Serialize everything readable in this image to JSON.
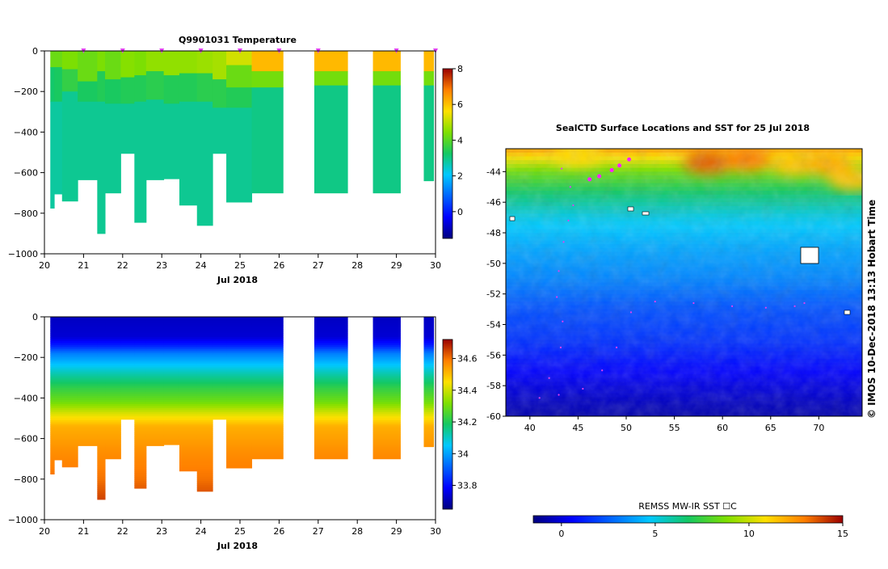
{
  "chart_data": [
    {
      "type": "heatmap",
      "title": "Q9901031  Temperature",
      "xlabel": "Jul 2018",
      "ylabel": "",
      "xlim": [
        20,
        30
      ],
      "ylim": [
        -1000,
        0
      ],
      "x_ticks": [
        "20",
        "21",
        "22",
        "23",
        "24",
        "25",
        "26",
        "27",
        "28",
        "29",
        "30"
      ],
      "y_ticks": [
        "0",
        "−200",
        "−400",
        "−600",
        "−800",
        "−1000"
      ],
      "colorbar": {
        "min": -1.5,
        "max": 8,
        "ticks": [
          "8",
          "6",
          "4",
          "2",
          "0"
        ],
        "tick_values": [
          8,
          6,
          4,
          2,
          0
        ]
      },
      "profile_markers_x": [
        21.0,
        22.0,
        23.0,
        24.0,
        25.0,
        26.0,
        27.0,
        29.0,
        30.0
      ],
      "profiles": [
        {
          "x0": 20.15,
          "x1": 20.25,
          "depth": 775,
          "bands": [
            [
              0,
              0,
              6.0
            ],
            [
              0,
              80,
              4.2
            ],
            [
              80,
              250,
              3.2
            ],
            [
              250,
              775,
              2.8
            ]
          ]
        },
        {
          "x0": 20.25,
          "x1": 20.45,
          "depth": 705,
          "bands": [
            [
              0,
              80,
              4.2
            ],
            [
              80,
              250,
              3.3
            ],
            [
              250,
              705,
              2.8
            ]
          ]
        },
        {
          "x0": 20.45,
          "x1": 20.85,
          "depth": 740,
          "bands": [
            [
              0,
              90,
              4.4
            ],
            [
              90,
              200,
              3.6
            ],
            [
              200,
              740,
              2.9
            ]
          ]
        },
        {
          "x0": 20.85,
          "x1": 21.35,
          "depth": 635,
          "bands": [
            [
              0,
              150,
              4.2
            ],
            [
              150,
              250,
              3.3
            ],
            [
              250,
              635,
              2.9
            ]
          ]
        },
        {
          "x0": 21.35,
          "x1": 21.55,
          "depth": 900,
          "bands": [
            [
              0,
              100,
              4.4
            ],
            [
              100,
              250,
              3.4
            ],
            [
              250,
              900,
              2.9
            ]
          ]
        },
        {
          "x0": 21.55,
          "x1": 21.95,
          "depth": 700,
          "bands": [
            [
              0,
              140,
              4.2
            ],
            [
              140,
              260,
              3.3
            ],
            [
              260,
              700,
              2.9
            ]
          ]
        },
        {
          "x0": 21.95,
          "x1": 22.3,
          "depth": 505,
          "bands": [
            [
              0,
              130,
              4.5
            ],
            [
              130,
              260,
              3.4
            ],
            [
              260,
              505,
              2.9
            ]
          ]
        },
        {
          "x0": 22.3,
          "x1": 22.6,
          "depth": 845,
          "bands": [
            [
              0,
              120,
              4.4
            ],
            [
              120,
              250,
              3.4
            ],
            [
              250,
              845,
              2.9
            ]
          ]
        },
        {
          "x0": 22.6,
          "x1": 23.05,
          "depth": 635,
          "bands": [
            [
              0,
              100,
              4.6
            ],
            [
              100,
              240,
              3.5
            ],
            [
              240,
              635,
              2.9
            ]
          ]
        },
        {
          "x0": 23.05,
          "x1": 23.45,
          "depth": 630,
          "bands": [
            [
              0,
              120,
              4.6
            ],
            [
              120,
              260,
              3.4
            ],
            [
              260,
              630,
              2.9
            ]
          ]
        },
        {
          "x0": 23.45,
          "x1": 23.9,
          "depth": 760,
          "bands": [
            [
              0,
              110,
              4.6
            ],
            [
              110,
              250,
              3.4
            ],
            [
              250,
              760,
              2.9
            ]
          ]
        },
        {
          "x0": 23.9,
          "x1": 24.3,
          "depth": 860,
          "bands": [
            [
              0,
              110,
              4.7
            ],
            [
              110,
              250,
              3.5
            ],
            [
              250,
              860,
              2.9
            ]
          ]
        },
        {
          "x0": 24.3,
          "x1": 24.65,
          "depth": 505,
          "bands": [
            [
              0,
              140,
              4.8
            ],
            [
              140,
              280,
              3.5
            ],
            [
              280,
              505,
              2.9
            ]
          ]
        },
        {
          "x0": 24.65,
          "x1": 25.3,
          "depth": 745,
          "bands": [
            [
              0,
              70,
              5.2
            ],
            [
              70,
              180,
              4.2
            ],
            [
              180,
              280,
              3.4
            ],
            [
              280,
              745,
              2.9
            ]
          ]
        },
        {
          "x0": 25.3,
          "x1": 26.1,
          "depth": 700,
          "bands": [
            [
              0,
              100,
              6.1
            ],
            [
              100,
              180,
              4.3
            ],
            [
              180,
              700,
              3.0
            ]
          ]
        },
        {
          "x0": 26.9,
          "x1": 27.75,
          "depth": 700,
          "bands": [
            [
              0,
              100,
              6.1
            ],
            [
              100,
              170,
              4.3
            ],
            [
              170,
              700,
              3.0
            ]
          ]
        },
        {
          "x0": 28.4,
          "x1": 29.1,
          "depth": 700,
          "bands": [
            [
              0,
              100,
              6.1
            ],
            [
              100,
              170,
              4.3
            ],
            [
              170,
              700,
              3.0
            ]
          ]
        },
        {
          "x0": 29.7,
          "x1": 29.95,
          "depth": 640,
          "bands": [
            [
              0,
              100,
              6.1
            ],
            [
              100,
              170,
              4.3
            ],
            [
              170,
              640,
              3.0
            ]
          ]
        }
      ]
    },
    {
      "type": "heatmap",
      "title": "",
      "xlabel": "Jul 2018",
      "ylabel": "",
      "xlim": [
        20,
        30
      ],
      "ylim": [
        -1000,
        0
      ],
      "x_ticks": [
        "20",
        "21",
        "22",
        "23",
        "24",
        "25",
        "26",
        "27",
        "28",
        "29",
        "30"
      ],
      "y_ticks": [
        "0",
        "−200",
        "−400",
        "−600",
        "−800",
        "−1000"
      ],
      "colorbar": {
        "min": 33.65,
        "max": 34.72,
        "ticks": [
          "34.6",
          "34.4",
          "34.2",
          "34",
          "33.8"
        ],
        "tick_values": [
          34.6,
          34.4,
          34.2,
          34.0,
          33.8
        ]
      },
      "profile_depths": [
        {
          "x0": 20.15,
          "x1": 20.25,
          "depth": 775
        },
        {
          "x0": 20.25,
          "x1": 20.45,
          "depth": 705
        },
        {
          "x0": 20.45,
          "x1": 20.85,
          "depth": 740
        },
        {
          "x0": 20.85,
          "x1": 21.35,
          "depth": 635
        },
        {
          "x0": 21.35,
          "x1": 21.55,
          "depth": 900
        },
        {
          "x0": 21.55,
          "x1": 21.95,
          "depth": 700
        },
        {
          "x0": 21.95,
          "x1": 22.3,
          "depth": 505
        },
        {
          "x0": 22.3,
          "x1": 22.6,
          "depth": 845
        },
        {
          "x0": 22.6,
          "x1": 23.05,
          "depth": 635
        },
        {
          "x0": 23.05,
          "x1": 23.45,
          "depth": 630
        },
        {
          "x0": 23.45,
          "x1": 23.9,
          "depth": 760
        },
        {
          "x0": 23.9,
          "x1": 24.3,
          "depth": 860
        },
        {
          "x0": 24.3,
          "x1": 24.65,
          "depth": 505
        },
        {
          "x0": 24.65,
          "x1": 25.3,
          "depth": 745
        },
        {
          "x0": 25.3,
          "x1": 26.1,
          "depth": 700
        },
        {
          "x0": 26.9,
          "x1": 27.75,
          "depth": 700
        },
        {
          "x0": 28.4,
          "x1": 29.1,
          "depth": 700
        },
        {
          "x0": 29.7,
          "x1": 29.95,
          "depth": 640
        }
      ],
      "salinity_profile": [
        [
          0,
          33.72
        ],
        [
          100,
          33.74
        ],
        [
          140,
          33.82
        ],
        [
          180,
          33.95
        ],
        [
          220,
          34.02
        ],
        [
          280,
          34.12
        ],
        [
          350,
          34.22
        ],
        [
          420,
          34.3
        ],
        [
          480,
          34.42
        ],
        [
          540,
          34.52
        ],
        [
          650,
          34.56
        ],
        [
          800,
          34.6
        ],
        [
          900,
          34.65
        ]
      ]
    },
    {
      "type": "heatmap",
      "title": "SealCTD Surface Locations and SST for 25 Jul 2018",
      "xlabel": "",
      "ylabel": "",
      "xlim": [
        37.5,
        74.5
      ],
      "ylim": [
        -60,
        -42.5
      ],
      "x_ticks": [
        "40",
        "45",
        "50",
        "55",
        "60",
        "65",
        "70"
      ],
      "y_ticks": [
        "-44",
        "-46",
        "-48",
        "-50",
        "-52",
        "-54",
        "-56",
        "-58",
        "-60"
      ],
      "colorbar": {
        "label": "REMSS MW-IR SST ☐C",
        "min": -1.5,
        "max": 15,
        "ticks": [
          "0",
          "5",
          "10",
          "15"
        ],
        "tick_values": [
          0,
          5,
          10,
          15
        ]
      },
      "sst_rows": [
        {
          "lat": -43.0,
          "sst": 11.0
        },
        {
          "lat": -44.0,
          "sst": 8.5
        },
        {
          "lat": -45.5,
          "sst": 6.5
        },
        {
          "lat": -47.0,
          "sst": 5.0
        },
        {
          "lat": -49.0,
          "sst": 4.0
        },
        {
          "lat": -51.0,
          "sst": 3.3
        },
        {
          "lat": -53.0,
          "sst": 2.2
        },
        {
          "lat": -55.0,
          "sst": 1.6
        },
        {
          "lat": -57.0,
          "sst": 0.6
        },
        {
          "lat": -59.0,
          "sst": -0.4
        },
        {
          "lat": -60.0,
          "sst": -0.8
        }
      ],
      "warm_patches": [
        {
          "lon": 58.5,
          "lat": -43.4,
          "sst": 13.5
        },
        {
          "lon": 62.5,
          "lat": -43.2,
          "sst": 13.0
        },
        {
          "lon": 67.5,
          "lat": -43.5,
          "sst": 11.5
        },
        {
          "lon": 71.0,
          "lat": -43.5,
          "sst": 12.0
        },
        {
          "lon": 45.0,
          "lat": -42.9,
          "sst": 11.0
        },
        {
          "lon": 73.5,
          "lat": -44.5,
          "sst": 11.5
        }
      ],
      "track_points": [
        [
          43.3,
          -43.8
        ],
        [
          44.2,
          -45.0
        ],
        [
          44.5,
          -46.2
        ],
        [
          44.0,
          -47.2
        ],
        [
          43.5,
          -48.6
        ],
        [
          43.0,
          -50.5
        ],
        [
          42.8,
          -52.2
        ],
        [
          43.4,
          -53.8
        ],
        [
          43.2,
          -55.5
        ],
        [
          42.0,
          -57.5
        ],
        [
          41.0,
          -58.8
        ],
        [
          43.0,
          -58.6
        ],
        [
          45.5,
          -58.2
        ],
        [
          47.5,
          -57.0
        ],
        [
          49.0,
          -55.5
        ],
        [
          50.5,
          -53.2
        ],
        [
          53.0,
          -52.5
        ],
        [
          57.0,
          -52.6
        ],
        [
          61.0,
          -52.8
        ],
        [
          64.5,
          -52.9
        ],
        [
          67.5,
          -52.8
        ],
        [
          68.5,
          -52.6
        ]
      ],
      "surface_points": [
        [
          50.3,
          -43.2
        ],
        [
          49.3,
          -43.6
        ],
        [
          48.5,
          -43.9
        ],
        [
          47.2,
          -44.3
        ],
        [
          46.2,
          -44.5
        ]
      ],
      "annotation": "© IMOS 10-Dec-2018 13:13 Hobart Time"
    }
  ],
  "colors": {
    "track": "#e040f0",
    "surface_point": "#ff20ff",
    "marker": "#e040f0"
  }
}
